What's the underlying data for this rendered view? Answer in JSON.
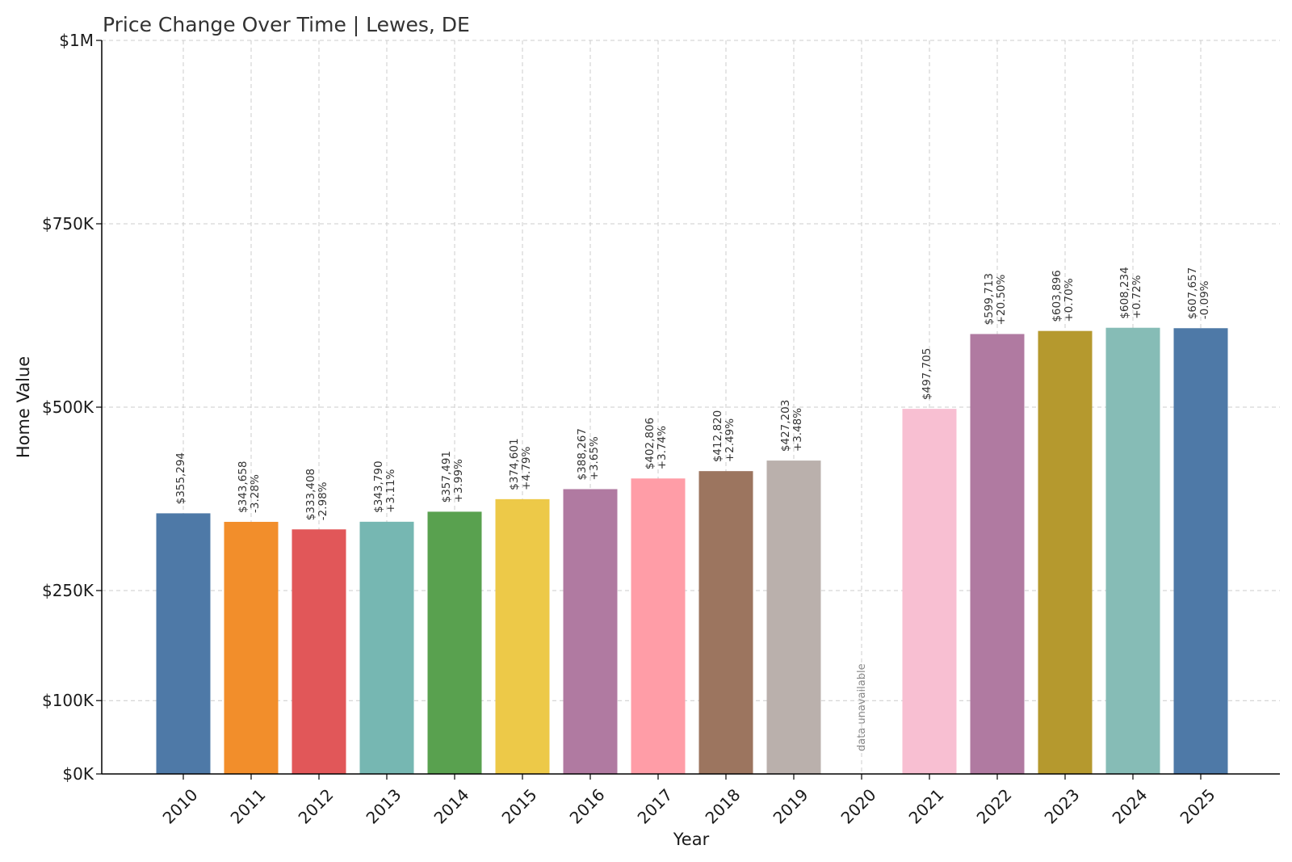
{
  "chart_data": {
    "type": "bar",
    "title": "Price Change Over Time | Lewes, DE",
    "xlabel": "Year",
    "ylabel": "Home Value",
    "ylim": [
      0,
      1000000
    ],
    "y_ticks": [
      {
        "value": 0,
        "label": "$0K"
      },
      {
        "value": 100000,
        "label": "$100K"
      },
      {
        "value": 250000,
        "label": "$250K"
      },
      {
        "value": 500000,
        "label": "$500K"
      },
      {
        "value": 750000,
        "label": "$750K"
      },
      {
        "value": 1000000,
        "label": "$1M"
      }
    ],
    "grid": true,
    "missing_label": "data unavailable",
    "bars": [
      {
        "year": "2010",
        "value": 355294,
        "value_label": "$355,294",
        "change_label": "",
        "color": "#4e79a7"
      },
      {
        "year": "2011",
        "value": 343658,
        "value_label": "$343,658",
        "change_label": "-3.28%",
        "color": "#f28e2b"
      },
      {
        "year": "2012",
        "value": 333408,
        "value_label": "$333,408",
        "change_label": "-2.98%",
        "color": "#e15759"
      },
      {
        "year": "2013",
        "value": 343790,
        "value_label": "$343,790",
        "change_label": "+3.11%",
        "color": "#76b7b2"
      },
      {
        "year": "2014",
        "value": 357491,
        "value_label": "$357,491",
        "change_label": "+3.99%",
        "color": "#59a14f"
      },
      {
        "year": "2015",
        "value": 374601,
        "value_label": "$374,601",
        "change_label": "+4.79%",
        "color": "#edc948"
      },
      {
        "year": "2016",
        "value": 388267,
        "value_label": "$388,267",
        "change_label": "+3.65%",
        "color": "#b07aa1"
      },
      {
        "year": "2017",
        "value": 402806,
        "value_label": "$402,806",
        "change_label": "+3.74%",
        "color": "#ff9da7"
      },
      {
        "year": "2018",
        "value": 412820,
        "value_label": "$412,820",
        "change_label": "+2.49%",
        "color": "#9c755f"
      },
      {
        "year": "2019",
        "value": 427203,
        "value_label": "$427,203",
        "change_label": "+3.48%",
        "color": "#bab0ac"
      },
      {
        "year": "2020",
        "value": null,
        "value_label": "",
        "change_label": "",
        "color": "#ffffff"
      },
      {
        "year": "2021",
        "value": 497705,
        "value_label": "$497,705",
        "change_label": "",
        "color": "#f8bfd2"
      },
      {
        "year": "2022",
        "value": 599713,
        "value_label": "$599,713",
        "change_label": "+20.50%",
        "color": "#b07aa1"
      },
      {
        "year": "2023",
        "value": 603896,
        "value_label": "$603,896",
        "change_label": "+0.70%",
        "color": "#b5992e"
      },
      {
        "year": "2024",
        "value": 608234,
        "value_label": "$608,234",
        "change_label": "+0.72%",
        "color": "#86bcb6"
      },
      {
        "year": "2025",
        "value": 607657,
        "value_label": "$607,657",
        "change_label": "-0.09%",
        "color": "#4e79a7"
      }
    ]
  }
}
